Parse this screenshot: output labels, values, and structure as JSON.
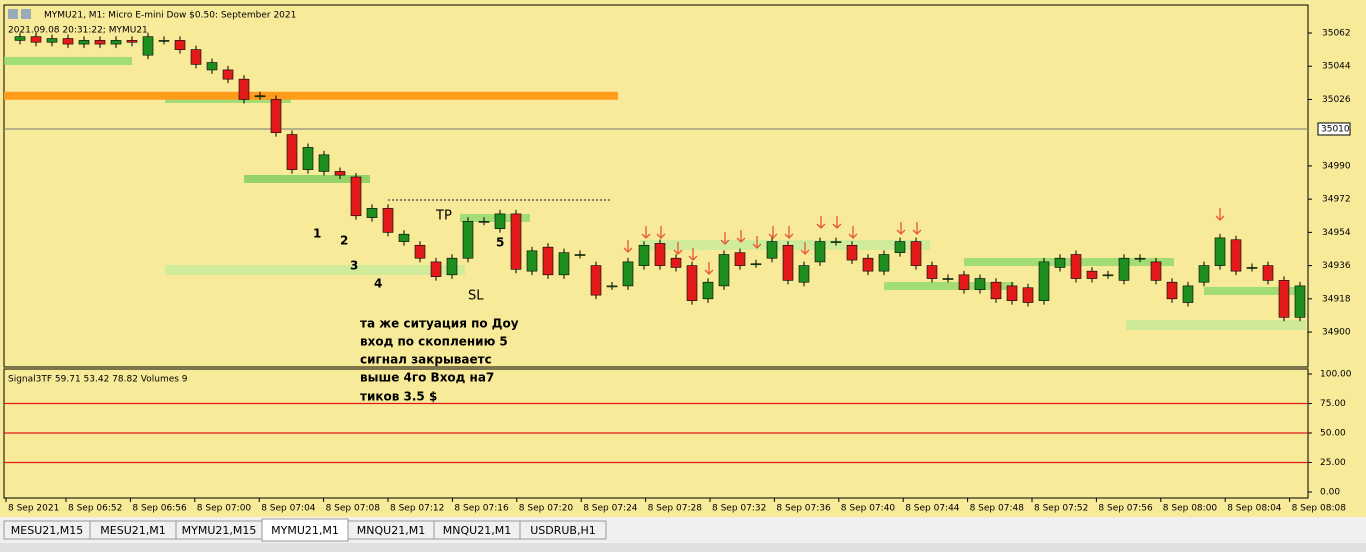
{
  "window": {
    "title": "MYMU21, M1:  Micro E-mini Dow $0.50: September 2021",
    "subtitle": "2021.09.08 20:31:22; MYMU21"
  },
  "price_axis": {
    "ticks": [
      35062,
      35044,
      35026,
      34990,
      34972,
      34954,
      34936,
      34918,
      34900
    ],
    "current": 35010
  },
  "level": 35028,
  "time_labels": [
    "8 Sep 2021",
    "8 Sep 06:52",
    "8 Sep 06:56",
    "8 Sep 07:00",
    "8 Sep 07:04",
    "8 Sep 07:08",
    "8 Sep 07:12",
    "8 Sep 07:16",
    "8 Sep 07:20",
    "8 Sep 07:24",
    "8 Sep 07:28",
    "8 Sep 07:32",
    "8 Sep 07:36",
    "8 Sep 07:40",
    "8 Sep 07:44",
    "8 Sep 07:48",
    "8 Sep 07:52",
    "8 Sep 07:56",
    "8 Sep 08:00",
    "8 Sep 08:04",
    "8 Sep 08:08"
  ],
  "candles": [
    [
      35058,
      35060
    ],
    [
      35060,
      35057
    ],
    [
      35057,
      35059
    ],
    [
      35059,
      35056
    ],
    [
      35056,
      35058
    ],
    [
      35058,
      35056
    ],
    [
      35056,
      35058
    ],
    [
      35058,
      35057
    ],
    [
      35050,
      35060
    ],
    [
      35058,
      35058
    ],
    [
      35058,
      35053
    ],
    [
      35053,
      35045
    ],
    [
      35042,
      35046
    ],
    [
      35042,
      35037
    ],
    [
      35037,
      35026
    ],
    [
      35028,
      35028
    ],
    [
      35026,
      35008
    ],
    [
      35007,
      34988
    ],
    [
      34988,
      35000
    ],
    [
      34987,
      34996
    ],
    [
      34987,
      34985
    ],
    [
      34984,
      34963
    ],
    [
      34962,
      34967
    ],
    [
      34967,
      34954
    ],
    [
      34949,
      34953
    ],
    [
      34947,
      34940
    ],
    [
      34938,
      34930
    ],
    [
      34931,
      34940
    ],
    [
      34940,
      34960
    ],
    [
      34960,
      34960
    ],
    [
      34956,
      34964
    ],
    [
      34964,
      34934
    ],
    [
      34933,
      34944
    ],
    [
      34946,
      34931
    ],
    [
      34931,
      34943
    ],
    [
      34942,
      34942
    ],
    [
      34936,
      34920
    ],
    [
      34925,
      34925
    ],
    [
      34925,
      34938
    ],
    [
      34936,
      34947
    ],
    [
      34948,
      34936
    ],
    [
      34940,
      34935
    ],
    [
      34936,
      34917
    ],
    [
      34918,
      34927
    ],
    [
      34925,
      34942
    ],
    [
      34943,
      34936
    ],
    [
      34937,
      34937
    ],
    [
      34940,
      34949
    ],
    [
      34947,
      34928
    ],
    [
      34927,
      34936
    ],
    [
      34938,
      34949
    ],
    [
      34949,
      34949
    ],
    [
      34947,
      34939
    ],
    [
      34940,
      34933
    ],
    [
      34933,
      34942
    ],
    [
      34943,
      34949
    ],
    [
      34949,
      34936
    ],
    [
      34936,
      34929
    ],
    [
      34929,
      34929
    ],
    [
      34931,
      34923
    ],
    [
      34923,
      34929
    ],
    [
      34927,
      34918
    ],
    [
      34925,
      34917
    ],
    [
      34924,
      34916
    ],
    [
      34917,
      34938
    ],
    [
      34935,
      34940
    ],
    [
      34942,
      34929
    ],
    [
      34933,
      34929
    ],
    [
      34931,
      34931
    ],
    [
      34928,
      34940
    ],
    [
      34940,
      34940
    ],
    [
      34938,
      34928
    ],
    [
      34927,
      34918
    ],
    [
      34916,
      34925
    ],
    [
      34927,
      34936
    ],
    [
      34936,
      34951
    ],
    [
      34950,
      34933
    ],
    [
      34935,
      34935
    ],
    [
      34936,
      34928
    ],
    [
      34928,
      34908
    ],
    [
      34908,
      34925
    ]
  ],
  "annotations": {
    "markers": [
      "1",
      "2",
      "3",
      "4",
      "5"
    ],
    "tp": "TP",
    "sl": "SL",
    "note": [
      "та же ситуация по Доу",
      "вход по скоплению 5",
      "сигнал закрываетс",
      "выше 4го  Вход на7",
      "тиков 3.5 $"
    ]
  },
  "indicator": {
    "label": "Signal3TF 59.71 53.42 78.82 Volumes 9",
    "ticks": [
      {
        "value": 100,
        "label": "100.00"
      },
      {
        "value": 75,
        "label": "75.00"
      },
      {
        "value": 50,
        "label": "50.00"
      },
      {
        "value": 25,
        "label": "25.00"
      },
      {
        "value": 0,
        "label": "0.00"
      }
    ],
    "levels": [
      75,
      50,
      25
    ]
  },
  "tabs": [
    "MESU21,M15",
    "MESU21,M1",
    "MYMU21,M15",
    "MYMU21,M1",
    "MNQU21,M1",
    "MNQU21,M1",
    "USDRUB,H1"
  ],
  "active_tab": 3
}
